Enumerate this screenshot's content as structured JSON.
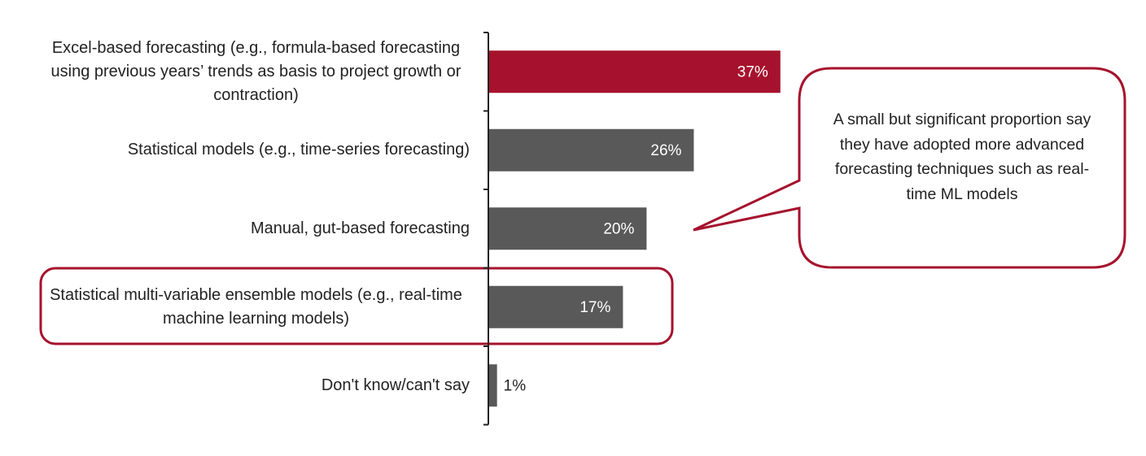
{
  "chart_data": {
    "type": "bar",
    "orientation": "horizontal",
    "categories": [
      "Excel-based forecasting (e.g., formula-based forecasting using previous years’ trends as basis to project growth or contraction)",
      "Statistical models (e.g., time-series forecasting)",
      "Manual, gut-based forecasting",
      "Statistical multi-variable ensemble models (e.g., real-time machine learning models)",
      "Don't know/can't say"
    ],
    "values": [
      37,
      26,
      20,
      17,
      1
    ],
    "value_labels": [
      "37%",
      "26%",
      "20%",
      "17%",
      "1%"
    ],
    "colors": [
      "#a6122d",
      "#595959",
      "#595959",
      "#595959",
      "#595959"
    ],
    "annotation": "A small but significant proportion say they have adopted more advanced forecasting techniques such as real-time ML models"
  }
}
